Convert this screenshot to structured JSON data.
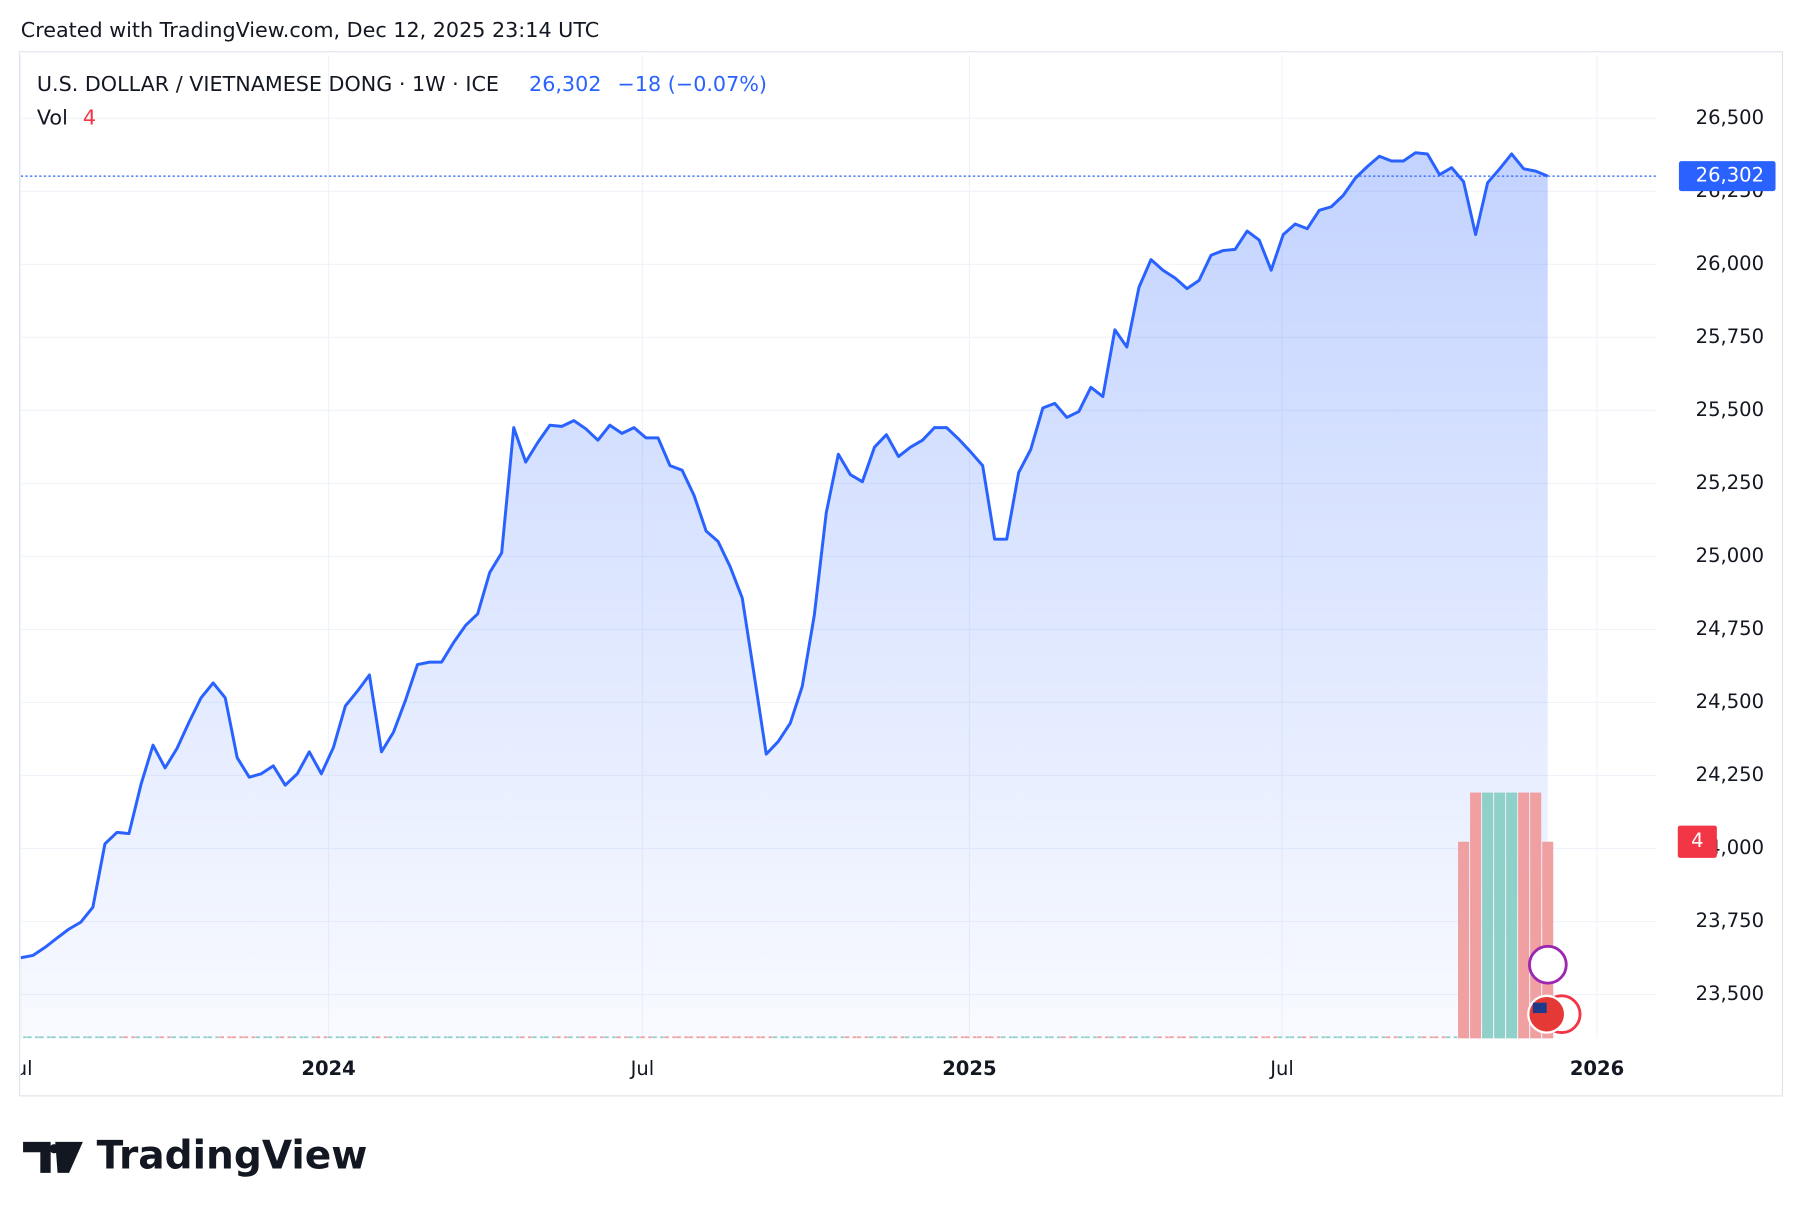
{
  "header": {
    "created": "Created with TradingView.com, Dec 12, 2025 23:14 UTC",
    "symbol": "U.S. DOLLAR / VIETNAMESE DONG · 1W · ICE",
    "last_label": "26,302",
    "change_label": "−18 (−0.07%)",
    "volume_name": "Vol",
    "volume_label": "4"
  },
  "footer": {
    "brand": "TradingView"
  },
  "chart_data": {
    "type": "area",
    "color": "#2962ff",
    "grid": true,
    "series": [
      {
        "name": "USD/VND",
        "color": "#2962ff",
        "values": [
          23626,
          23634,
          23661,
          23693,
          23724,
          23748,
          23799,
          24016,
          24055,
          24051,
          24220,
          24354,
          24276,
          24343,
          24433,
          24516,
          24567,
          24516,
          24311,
          24244,
          24256,
          24283,
          24217,
          24256,
          24331,
          24256,
          24346,
          24488,
          24539,
          24594,
          24331,
          24398,
          24508,
          24630,
          24638,
          24638,
          24705,
          24764,
          24803,
          24945,
          25012,
          25441,
          25323,
          25390,
          25449,
          25445,
          25465,
          25437,
          25398,
          25449,
          25421,
          25441,
          25406,
          25406,
          25311,
          25295,
          25209,
          25087,
          25051,
          24965,
          24858,
          24594,
          24323,
          24366,
          24429,
          24555,
          24799,
          25150,
          25350,
          25280,
          25256,
          25374,
          25417,
          25342,
          25374,
          25398,
          25441,
          25441,
          25402,
          25358,
          25311,
          25059,
          25059,
          25287,
          25366,
          25508,
          25524,
          25476,
          25496,
          25579,
          25547,
          25776,
          25717,
          25921,
          26016,
          25980,
          25953,
          25917,
          25945,
          26031,
          26047,
          26051,
          26114,
          26083,
          25980,
          26102,
          26138,
          26122,
          26185,
          26197,
          26236,
          26295,
          26335,
          26370,
          26354,
          26354,
          26382,
          26378,
          26307,
          26331,
          26283,
          26102,
          26279,
          26327,
          26378,
          26327,
          26319,
          26302
        ]
      },
      {
        "name": "Vol",
        "up_color": "#8fd0c8",
        "down_color": "#f0a0a0",
        "values": [
          0,
          0,
          0,
          0,
          0,
          0,
          0,
          0,
          0,
          0,
          0,
          0,
          0,
          0,
          0,
          0,
          0,
          0,
          0,
          0,
          0,
          0,
          0,
          0,
          0,
          0,
          0,
          0,
          0,
          0,
          0,
          0,
          0,
          0,
          0,
          0,
          0,
          0,
          0,
          0,
          0,
          0,
          0,
          0,
          0,
          0,
          0,
          0,
          0,
          0,
          0,
          0,
          0,
          0,
          0,
          0,
          0,
          0,
          0,
          0,
          0,
          0,
          0,
          0,
          0,
          0,
          0,
          0,
          0,
          0,
          0,
          0,
          0,
          0,
          0,
          0,
          0,
          0,
          0,
          0,
          0,
          0,
          0,
          0,
          0,
          0,
          0,
          0,
          0,
          0,
          0,
          0,
          0,
          0,
          0,
          0,
          0,
          0,
          0,
          0,
          0,
          0,
          0,
          0,
          0,
          0,
          0,
          0,
          0,
          0,
          0,
          0,
          0,
          0,
          0,
          0,
          0,
          0,
          0,
          0,
          4,
          5,
          5,
          5,
          5,
          5,
          5,
          4
        ]
      }
    ],
    "xlim": [
      0,
      136
    ],
    "xticks": [
      {
        "value": 0,
        "label": "Jul"
      },
      {
        "value": 25.6,
        "label": "2024"
      },
      {
        "value": 51.7,
        "label": "Jul"
      },
      {
        "value": 78.9,
        "label": "2025"
      },
      {
        "value": 104.9,
        "label": "Jul"
      },
      {
        "value": 131.1,
        "label": "2026"
      }
    ],
    "ylim": [
      23350,
      26716
    ],
    "yticks": [
      {
        "value": 23500,
        "label": "23,500"
      },
      {
        "value": 23750,
        "label": "23,750"
      },
      {
        "value": 24000,
        "label": "24,000"
      },
      {
        "value": 24250,
        "label": "24,250"
      },
      {
        "value": 24500,
        "label": "24,500"
      },
      {
        "value": 24750,
        "label": "24,750"
      },
      {
        "value": 25000,
        "label": "25,000"
      },
      {
        "value": 25250,
        "label": "25,250"
      },
      {
        "value": 25500,
        "label": "25,500"
      },
      {
        "value": 25750,
        "label": "25,750"
      },
      {
        "value": 26000,
        "label": "26,000"
      },
      {
        "value": 26250,
        "label": "26,250"
      },
      {
        "value": 26500,
        "label": "26,500"
      }
    ],
    "vol_ylim": [
      0,
      20
    ]
  }
}
